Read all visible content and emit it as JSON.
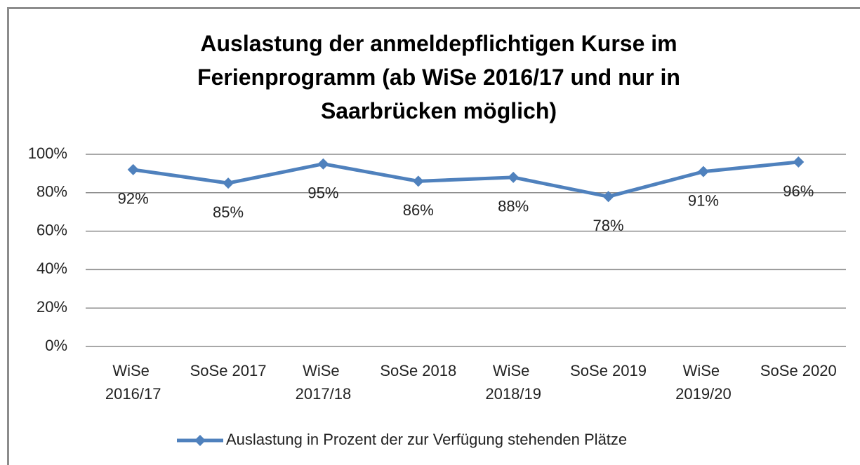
{
  "chart_data": {
    "type": "line",
    "title": "Auslastung der anmeldepflichtigen Kurse im Ferienprogramm (ab WiSe 2016/17 und nur in Saarbrücken möglich)",
    "categories": [
      "WiSe 2016/17",
      "SoSe 2017",
      "WiSe 2017/18",
      "SoSe 2018",
      "WiSe 2018/19",
      "SoSe 2019",
      "WiSe 2019/20",
      "SoSe 2020"
    ],
    "series": [
      {
        "name": "Auslastung in Prozent der zur Verfügung stehenden Plätze",
        "color": "#4f81bd",
        "values": [
          92,
          85,
          95,
          86,
          88,
          78,
          91,
          96
        ],
        "value_labels": [
          "92%",
          "85%",
          "95%",
          "86%",
          "88%",
          "78%",
          "91%",
          "96%"
        ]
      }
    ],
    "ylim": [
      0,
      100
    ],
    "yticks": [
      {
        "value": 0,
        "label": "0%"
      },
      {
        "value": 20,
        "label": "20%"
      },
      {
        "value": 40,
        "label": "40%"
      },
      {
        "value": 60,
        "label": "60%"
      },
      {
        "value": 80,
        "label": "80%"
      },
      {
        "value": 100,
        "label": "100%"
      }
    ],
    "grid": true,
    "legend": "bottom"
  }
}
